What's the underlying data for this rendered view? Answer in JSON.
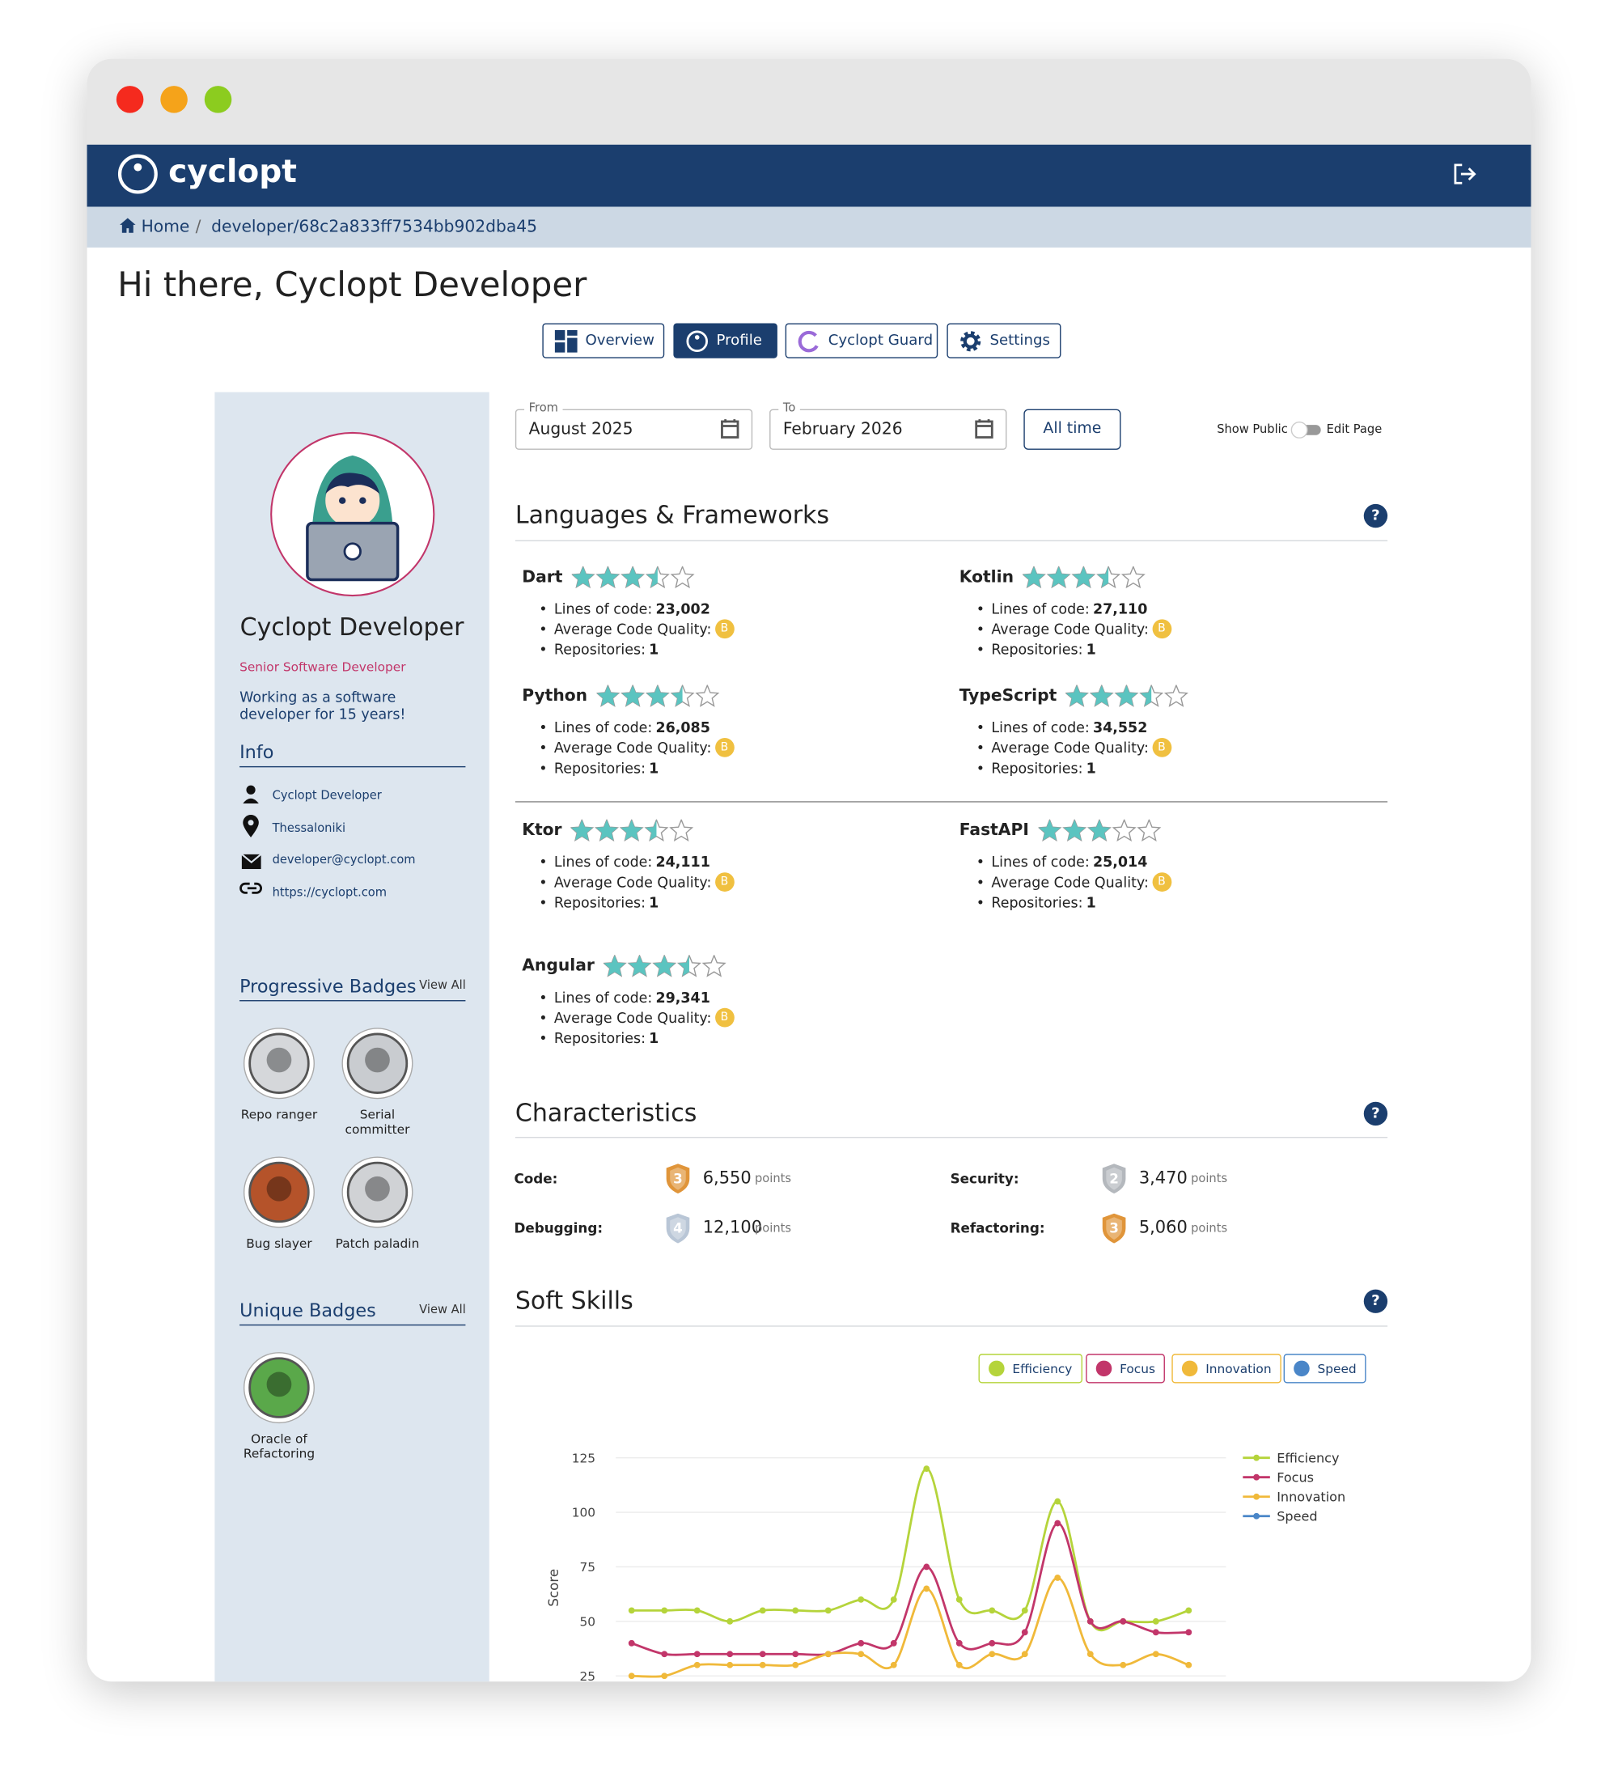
{
  "header": {
    "brand": "cyclopt"
  },
  "breadcrumb": {
    "home": "Home",
    "separator": "/",
    "path": "developer/68c2a833ff7534bb902dba45"
  },
  "greeting": "Hi there, Cyclopt Developer",
  "tabs": [
    "Overview",
    "Profile",
    "Cyclopt Guard",
    "Settings"
  ],
  "profile": {
    "name": "Cyclopt Developer",
    "role": "Senior Software Developer",
    "bio": "Working as a software developer for 15 years!",
    "info_title": "Info",
    "info": [
      "Cyclopt Developer",
      "Thessaloniki",
      "developer@cyclopt.com",
      "https://cyclopt.com"
    ]
  },
  "progressive_badges": {
    "title": "Progressive Badges",
    "view_all": "View All",
    "badges": [
      "Repo ranger",
      "Serial committer",
      "Bug slayer",
      "Patch paladin"
    ]
  },
  "unique_badges": {
    "title": "Unique Badges",
    "view_all": "View All",
    "badges": [
      "Oracle of Refactoring"
    ]
  },
  "filters": {
    "from_label": "From",
    "from": "August 2025",
    "to_label": "To",
    "to": "February 2026",
    "all_time": "All time",
    "show_public": "Show Public",
    "edit_page": "Edit Page"
  },
  "languages": {
    "title": "Languages & Frameworks",
    "labels": {
      "loc": "Lines of code:",
      "quality": "Average Code Quality:",
      "repos": "Repositories:"
    },
    "items": [
      {
        "name": "Dart",
        "stars": 3.5,
        "loc": "23,002",
        "quality": "B",
        "repos": 1
      },
      {
        "name": "Kotlin",
        "stars": 3.5,
        "loc": "27,110",
        "quality": "B",
        "repos": 1
      },
      {
        "name": "Python",
        "stars": 3.5,
        "loc": "26,085",
        "quality": "B",
        "repos": 1
      },
      {
        "name": "TypeScript",
        "stars": 3.5,
        "loc": "34,552",
        "quality": "B",
        "repos": 1
      },
      {
        "name": "Ktor",
        "stars": 3.5,
        "loc": "24,111",
        "quality": "B",
        "repos": 1
      },
      {
        "name": "FastAPI",
        "stars": 3,
        "loc": "25,014",
        "quality": "B",
        "repos": 1
      },
      {
        "name": "Angular",
        "stars": 3.5,
        "loc": "29,341",
        "quality": "B",
        "repos": 1
      }
    ]
  },
  "characteristics": {
    "title": "Characteristics",
    "unit": "points",
    "items": [
      {
        "name": "Code:",
        "level": 3,
        "points": "6,550",
        "color": "#e0953a"
      },
      {
        "name": "Security:",
        "level": 2,
        "points": "3,470",
        "color": "#b4b8bd"
      },
      {
        "name": "Debugging:",
        "level": 4,
        "points": "12,100",
        "color": "#b9c6d6"
      },
      {
        "name": "Refactoring:",
        "level": 3,
        "points": "5,060",
        "color": "#e0953a"
      }
    ]
  },
  "soft_skills": {
    "title": "Soft Skills",
    "chart": {
      "type": "line",
      "y_label": "Score",
      "categories": [
        null,
        null,
        null,
        null,
        null,
        null,
        null,
        null,
        null,
        null,
        null,
        null,
        null,
        null,
        null,
        null,
        null,
        null
      ],
      "ylim": [
        20,
        130
      ],
      "yticks": [
        25,
        50,
        75,
        100,
        125
      ],
      "grid": true,
      "series": [
        {
          "name": "Efficiency",
          "color": "#b5d43b",
          "values": [
            55,
            55,
            55,
            50,
            55,
            55,
            55,
            60,
            60,
            120,
            60,
            55,
            55,
            105,
            50,
            50,
            50,
            55
          ]
        },
        {
          "name": "Focus",
          "color": "#c2366a",
          "values": [
            40,
            35,
            35,
            35,
            35,
            35,
            35,
            40,
            40,
            75,
            40,
            40,
            45,
            95,
            50,
            50,
            45,
            45
          ]
        },
        {
          "name": "Innovation",
          "color": "#f0b93a",
          "values": [
            25,
            25,
            30,
            30,
            30,
            30,
            35,
            35,
            30,
            65,
            30,
            35,
            35,
            70,
            35,
            30,
            35,
            30
          ]
        },
        {
          "name": "Speed",
          "color": "#4a86c8",
          "values": [
            null,
            null,
            null,
            null,
            null,
            null,
            null,
            null,
            null,
            null,
            null,
            null,
            null,
            null,
            null,
            null,
            null,
            null
          ]
        }
      ]
    }
  }
}
